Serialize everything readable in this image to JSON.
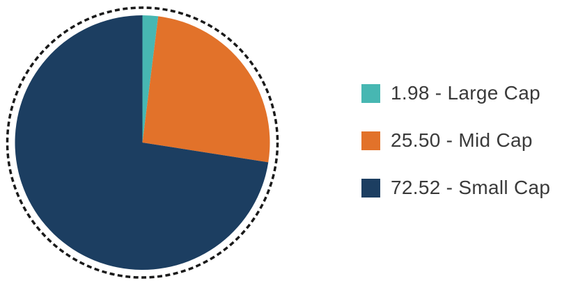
{
  "chart_data": {
    "type": "pie",
    "title": "",
    "start_angle_deg": 0,
    "direction": "clockwise",
    "total": 100.0,
    "slices": [
      {
        "value": 1.98,
        "label": "Large Cap",
        "legend_label": "1.98 - Large Cap",
        "color": "#47b7b2"
      },
      {
        "value": 25.5,
        "label": "Mid Cap",
        "legend_label": "25.50 - Mid Cap",
        "color": "#e2722a"
      },
      {
        "value": 72.52,
        "label": "Small Cap",
        "legend_label": "72.52 - Small Cap",
        "color": "#1c3e61"
      }
    ],
    "border_ring": {
      "style": "dotted",
      "color": "#1a1a1a"
    },
    "legend_position": "right",
    "legend_text_color": "#3a3a3a"
  }
}
